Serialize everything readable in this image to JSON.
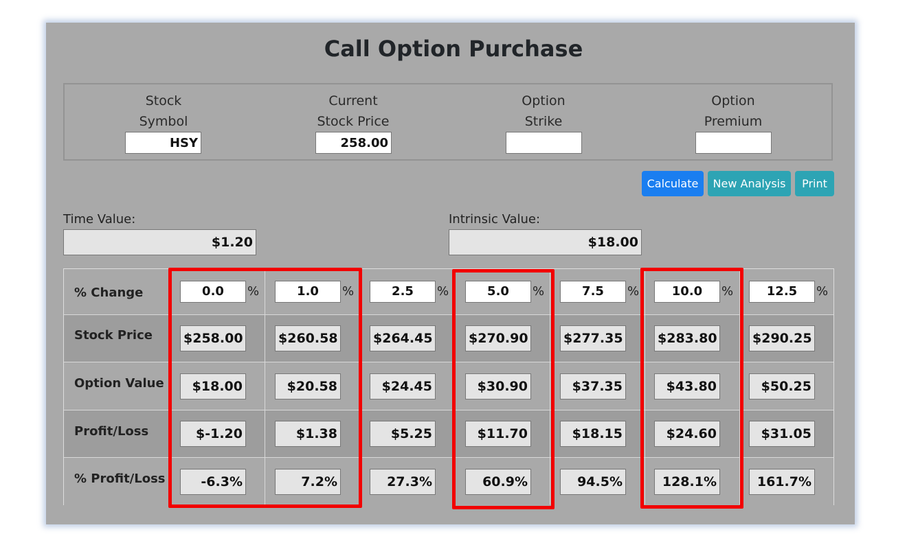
{
  "title": "Call Option Purchase",
  "inputs": {
    "stock_symbol": {
      "label_line1": "Stock",
      "label_line2": "Symbol",
      "value": "HSY"
    },
    "current_price": {
      "label_line1": "Current",
      "label_line2": "Stock Price",
      "value": "258.00"
    },
    "option_strike": {
      "label_line1": "Option",
      "label_line2": "Strike",
      "value": ""
    },
    "option_premium": {
      "label_line1": "Option",
      "label_line2": "Premium",
      "value": ""
    }
  },
  "buttons": {
    "calculate": "Calculate",
    "new_analysis": "New Analysis",
    "print": "Print"
  },
  "summary": {
    "time_value_label": "Time Value:",
    "time_value": "$1.20",
    "intrinsic_value_label": "Intrinsic Value:",
    "intrinsic_value": "$18.00"
  },
  "table": {
    "pct_symbol": "%",
    "row_labels": [
      "% Change",
      "Stock Price",
      "Option Value",
      "Profit/Loss",
      "% Profit/Loss"
    ],
    "pct_change": [
      "0.0",
      "1.0",
      "2.5",
      "5.0",
      "7.5",
      "10.0",
      "12.5"
    ],
    "stock_price": [
      "$258.00",
      "$260.58",
      "$264.45",
      "$270.90",
      "$277.35",
      "$283.80",
      "$290.25"
    ],
    "option_value": [
      "$18.00",
      "$20.58",
      "$24.45",
      "$30.90",
      "$37.35",
      "$43.80",
      "$50.25"
    ],
    "profit_loss": [
      "$-1.20",
      "$1.38",
      "$5.25",
      "$11.70",
      "$18.15",
      "$24.60",
      "$31.05"
    ],
    "pct_profit_loss": [
      "-6.3%",
      "7.2%",
      "27.3%",
      "60.9%",
      "94.5%",
      "128.1%",
      "161.7%"
    ]
  },
  "highlight_color": "#f20000",
  "colors": {
    "panel_bg": "#a9a9a9",
    "calculate_btn": "#1a7ef0",
    "info_btn": "#2da4b4"
  }
}
